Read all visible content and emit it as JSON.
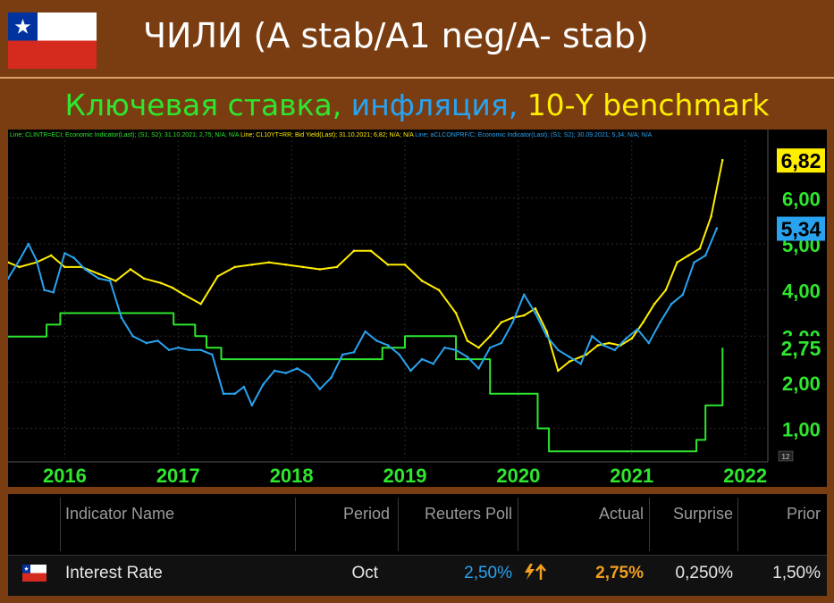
{
  "header": {
    "title": "ЧИЛИ (A stab/A1 neg/A- stab)",
    "subtitle_parts": [
      "Ключевая ставка, ",
      "инфляция, ",
      "10-Y benchmark"
    ],
    "flag_icon": "chile-flag-icon"
  },
  "chart_data": {
    "type": "line",
    "legend_text": [
      "Line; CLINTR=ECI; Economic Indicator(Last); (S1; S2); 31.10.2021; 2,75; N/A; N/A",
      "Line; CL10YT=RR; Bid Yield(Last); 31.10.2021; 6,82; N/A; N/A",
      "Line; aCLCONPRF/C; Economic Indicator(Last); (S1; S2); 30.09.2021; 5,34; N/A; N/A"
    ],
    "x_tick_labels": [
      "2016",
      "2017",
      "2018",
      "2019",
      "2020",
      "2021",
      "2022"
    ],
    "y_tick_labels": [
      "1,00",
      "2,00",
      "3,00",
      "4,00",
      "5,00",
      "6,00"
    ],
    "ylim": [
      0.35,
      7.25
    ],
    "xlim": [
      2015.5,
      2022.2
    ],
    "last_value_labels": [
      {
        "text": "6,82",
        "value": 6.82,
        "bg": "#ffee00",
        "fg": "#000000"
      },
      {
        "text": "5,34",
        "value": 5.34,
        "bg": "#29a3f0",
        "fg": "#000000"
      },
      {
        "text": "2,75",
        "value": 2.75,
        "bg": "#000000",
        "fg": "#2ee62e"
      }
    ],
    "corner_label": "12",
    "series": [
      {
        "color": "#2ee62e",
        "step": true,
        "points": [
          [
            2015.5,
            2.99
          ],
          [
            2015.8,
            2.99
          ],
          [
            2015.84,
            3.25
          ],
          [
            2015.92,
            3.25
          ],
          [
            2015.96,
            3.5
          ],
          [
            2016.92,
            3.5
          ],
          [
            2016.96,
            3.25
          ],
          [
            2017.08,
            3.25
          ],
          [
            2017.15,
            3.0
          ],
          [
            2017.25,
            2.75
          ],
          [
            2017.38,
            2.5
          ],
          [
            2018.75,
            2.5
          ],
          [
            2018.8,
            2.75
          ],
          [
            2019.0,
            2.75
          ],
          [
            2019.0,
            3.0
          ],
          [
            2019.42,
            3.0
          ],
          [
            2019.45,
            2.5
          ],
          [
            2019.55,
            2.5
          ],
          [
            2019.75,
            1.75
          ],
          [
            2020.0,
            1.75
          ],
          [
            2020.17,
            1.0
          ],
          [
            2020.27,
            0.5
          ],
          [
            2021.5,
            0.5
          ],
          [
            2021.57,
            0.75
          ],
          [
            2021.65,
            1.5
          ],
          [
            2021.8,
            2.75
          ]
        ]
      },
      {
        "color": "#ffee00",
        "step": false,
        "points": [
          [
            2015.5,
            4.6
          ],
          [
            2015.6,
            4.5
          ],
          [
            2015.75,
            4.6
          ],
          [
            2015.88,
            4.75
          ],
          [
            2016.0,
            4.5
          ],
          [
            2016.15,
            4.5
          ],
          [
            2016.3,
            4.35
          ],
          [
            2016.45,
            4.2
          ],
          [
            2016.58,
            4.45
          ],
          [
            2016.7,
            4.25
          ],
          [
            2016.85,
            4.15
          ],
          [
            2016.95,
            4.05
          ],
          [
            2017.05,
            3.9
          ],
          [
            2017.2,
            3.7
          ],
          [
            2017.35,
            4.3
          ],
          [
            2017.5,
            4.5
          ],
          [
            2017.65,
            4.55
          ],
          [
            2017.8,
            4.6
          ],
          [
            2017.95,
            4.55
          ],
          [
            2018.1,
            4.5
          ],
          [
            2018.25,
            4.45
          ],
          [
            2018.4,
            4.5
          ],
          [
            2018.55,
            4.85
          ],
          [
            2018.7,
            4.85
          ],
          [
            2018.85,
            4.55
          ],
          [
            2019.0,
            4.55
          ],
          [
            2019.15,
            4.2
          ],
          [
            2019.3,
            4.0
          ],
          [
            2019.45,
            3.5
          ],
          [
            2019.55,
            2.9
          ],
          [
            2019.65,
            2.75
          ],
          [
            2019.75,
            3.0
          ],
          [
            2019.85,
            3.3
          ],
          [
            2019.95,
            3.4
          ],
          [
            2020.05,
            3.45
          ],
          [
            2020.15,
            3.6
          ],
          [
            2020.25,
            3.1
          ],
          [
            2020.35,
            2.25
          ],
          [
            2020.45,
            2.45
          ],
          [
            2020.6,
            2.6
          ],
          [
            2020.7,
            2.8
          ],
          [
            2020.8,
            2.85
          ],
          [
            2020.9,
            2.8
          ],
          [
            2021.0,
            2.95
          ],
          [
            2021.1,
            3.3
          ],
          [
            2021.2,
            3.7
          ],
          [
            2021.3,
            4.0
          ],
          [
            2021.4,
            4.6
          ],
          [
            2021.5,
            4.75
          ],
          [
            2021.6,
            4.9
          ],
          [
            2021.7,
            5.6
          ],
          [
            2021.8,
            6.82
          ]
        ]
      },
      {
        "color": "#29a3f0",
        "step": false,
        "points": [
          [
            2015.5,
            4.25
          ],
          [
            2015.6,
            4.65
          ],
          [
            2015.68,
            5.0
          ],
          [
            2015.75,
            4.65
          ],
          [
            2015.82,
            4.0
          ],
          [
            2015.9,
            3.95
          ],
          [
            2016.0,
            4.8
          ],
          [
            2016.08,
            4.7
          ],
          [
            2016.18,
            4.45
          ],
          [
            2016.3,
            4.25
          ],
          [
            2016.4,
            4.2
          ],
          [
            2016.5,
            3.4
          ],
          [
            2016.6,
            3.0
          ],
          [
            2016.72,
            2.85
          ],
          [
            2016.82,
            2.9
          ],
          [
            2016.92,
            2.7
          ],
          [
            2017.0,
            2.75
          ],
          [
            2017.1,
            2.7
          ],
          [
            2017.2,
            2.7
          ],
          [
            2017.3,
            2.6
          ],
          [
            2017.4,
            1.75
          ],
          [
            2017.5,
            1.75
          ],
          [
            2017.58,
            1.9
          ],
          [
            2017.65,
            1.5
          ],
          [
            2017.75,
            1.95
          ],
          [
            2017.85,
            2.25
          ],
          [
            2017.95,
            2.2
          ],
          [
            2018.05,
            2.3
          ],
          [
            2018.15,
            2.15
          ],
          [
            2018.25,
            1.85
          ],
          [
            2018.35,
            2.1
          ],
          [
            2018.45,
            2.6
          ],
          [
            2018.55,
            2.65
          ],
          [
            2018.65,
            3.1
          ],
          [
            2018.75,
            2.9
          ],
          [
            2018.85,
            2.8
          ],
          [
            2018.95,
            2.6
          ],
          [
            2019.05,
            2.25
          ],
          [
            2019.15,
            2.5
          ],
          [
            2019.25,
            2.4
          ],
          [
            2019.35,
            2.75
          ],
          [
            2019.45,
            2.7
          ],
          [
            2019.55,
            2.55
          ],
          [
            2019.65,
            2.3
          ],
          [
            2019.75,
            2.75
          ],
          [
            2019.85,
            2.85
          ],
          [
            2019.95,
            3.3
          ],
          [
            2020.05,
            3.9
          ],
          [
            2020.15,
            3.5
          ],
          [
            2020.25,
            3.0
          ],
          [
            2020.35,
            2.7
          ],
          [
            2020.45,
            2.55
          ],
          [
            2020.55,
            2.4
          ],
          [
            2020.65,
            3.0
          ],
          [
            2020.75,
            2.8
          ],
          [
            2020.85,
            2.7
          ],
          [
            2020.95,
            2.95
          ],
          [
            2021.05,
            3.15
          ],
          [
            2021.15,
            2.85
          ],
          [
            2021.25,
            3.3
          ],
          [
            2021.35,
            3.7
          ],
          [
            2021.45,
            3.9
          ],
          [
            2021.55,
            4.6
          ],
          [
            2021.65,
            4.75
          ],
          [
            2021.75,
            5.34
          ]
        ]
      }
    ]
  },
  "table": {
    "headers": {
      "indicator": "Indicator Name",
      "period": "Period",
      "poll": "Reuters Poll",
      "actual": "Actual",
      "surprise": "Surprise",
      "prior": "Prior"
    },
    "row": {
      "indicator": "Interest Rate",
      "period": "Oct",
      "poll": "2,50%",
      "actual": "2,75%",
      "surprise": "0,250%",
      "prior": "1,50%",
      "icon": "up-arrow-flash-icon"
    }
  }
}
